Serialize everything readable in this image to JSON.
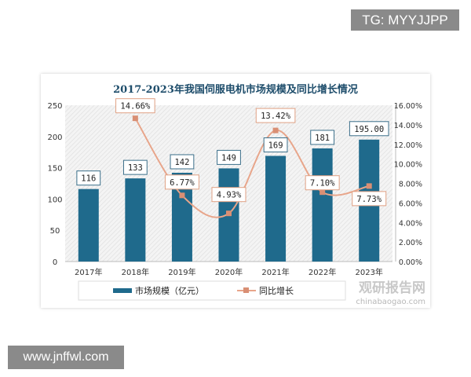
{
  "overlays": {
    "top_right": "TG: MYYJJPP",
    "bottom_left": "www.jnffwl.com"
  },
  "watermark": {
    "cn": "观研报告网",
    "en": "chinabaogao.com"
  },
  "chart_data": {
    "type": "bar+line",
    "title": "2017-2023年我国伺服电机市场规模及同比增长情况",
    "categories": [
      "2017年",
      "2018年",
      "2019年",
      "2020年",
      "2021年",
      "2022年",
      "2023年"
    ],
    "series": [
      {
        "name": "市场规模（亿元）",
        "type": "bar",
        "axis": "left",
        "values": [
          116,
          133,
          142,
          149,
          169,
          181,
          195
        ],
        "labels": [
          "116",
          "133",
          "142",
          "149",
          "169",
          "181",
          "195.00"
        ],
        "color": "#1f6a8c"
      },
      {
        "name": "同比增长",
        "type": "line",
        "axis": "right",
        "values": [
          null,
          14.66,
          6.77,
          4.93,
          13.42,
          7.1,
          7.73
        ],
        "labels": [
          "",
          "14.66%",
          "6.77%",
          "4.93%",
          "13.42%",
          "7.10%",
          "7.73%"
        ],
        "color": "#e8a58a"
      }
    ],
    "left_axis": {
      "ylim": [
        0,
        250
      ],
      "ticks": [
        "0",
        "50",
        "100",
        "150",
        "200",
        "250"
      ]
    },
    "right_axis": {
      "ylim": [
        0,
        16
      ],
      "ticks": [
        "0.00%",
        "2.00%",
        "4.00%",
        "6.00%",
        "8.00%",
        "10.00%",
        "12.00%",
        "14.00%",
        "16.00%"
      ]
    },
    "legend": "bottom",
    "grid": false
  }
}
